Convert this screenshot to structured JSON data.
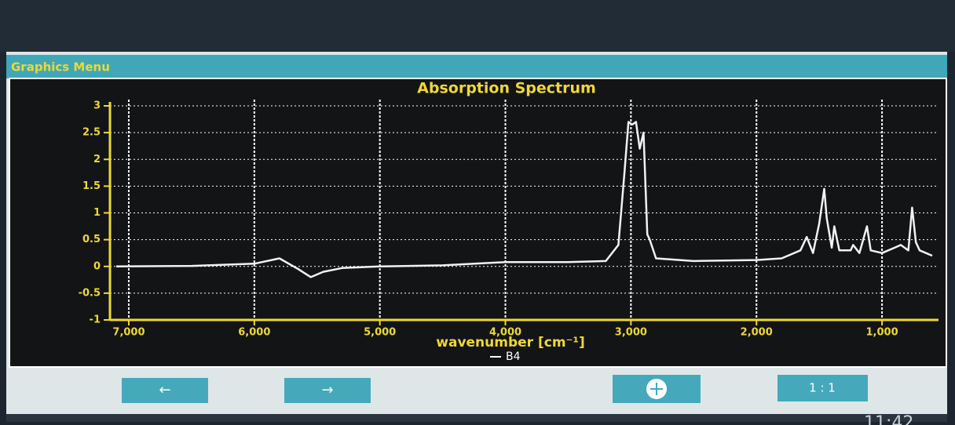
{
  "ui": {
    "window_title": "Graphics Menu",
    "buttons": [
      "←",
      "→",
      "1 : 1"
    ],
    "clock": "11:42"
  },
  "chart_data": {
    "type": "line",
    "title": "Absorption Spectrum",
    "x_label": "wavenumber [cm⁻¹]",
    "x": [
      7100,
      6500,
      6000,
      5800,
      5650,
      5550,
      5450,
      5300,
      5000,
      4500,
      4000,
      3500,
      3200,
      3100,
      3050,
      3020,
      2990,
      2960,
      2930,
      2900,
      2870,
      2850,
      2800,
      2500,
      2000,
      1800,
      1650,
      1600,
      1550,
      1500,
      1460,
      1440,
      1400,
      1380,
      1340,
      1250,
      1230,
      1180,
      1120,
      1090,
      1000,
      900,
      850,
      790,
      760,
      730,
      700,
      650,
      600
    ],
    "series": [
      {
        "name": "B4",
        "color": "#f2f2f2",
        "values": [
          0,
          0.01,
          0.05,
          0.15,
          -0.05,
          -0.2,
          -0.1,
          -0.03,
          0,
          0.02,
          0.08,
          0.08,
          0.1,
          0.4,
          1.8,
          2.7,
          2.65,
          2.7,
          2.2,
          2.5,
          0.6,
          0.5,
          0.15,
          0.1,
          0.12,
          0.15,
          0.3,
          0.55,
          0.25,
          0.8,
          1.45,
          0.9,
          0.35,
          0.75,
          0.3,
          0.3,
          0.4,
          0.25,
          0.75,
          0.3,
          0.25,
          0.35,
          0.4,
          0.3,
          1.1,
          0.45,
          0.3,
          0.25,
          0.2
        ]
      }
    ],
    "xlim": [
      7150,
      550
    ],
    "xticks": [
      {
        "value": 7000,
        "label": "7,000"
      },
      {
        "value": 6000,
        "label": "6,000"
      },
      {
        "value": 5000,
        "label": "5,000"
      },
      {
        "value": 4000,
        "label": "4,000"
      },
      {
        "value": 3000,
        "label": "3,000"
      },
      {
        "value": 2000,
        "label": "2,000"
      },
      {
        "value": 1000,
        "label": "1,000"
      }
    ],
    "ylim": [
      -1,
      3
    ],
    "yticks": [
      -1,
      -0.5,
      0,
      0.5,
      1,
      1.5,
      2,
      2.5,
      3
    ],
    "grid": true
  }
}
